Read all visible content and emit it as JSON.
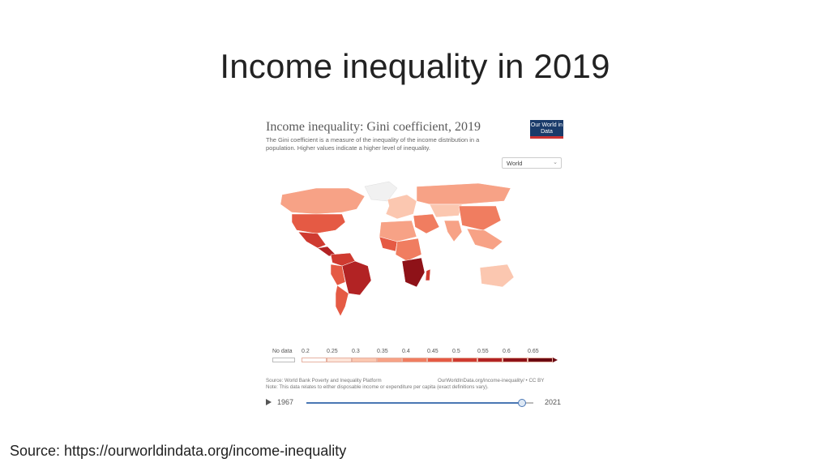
{
  "slide": {
    "title": "Income inequality in 2019",
    "source": "Source: https://ourworldindata.org/income-inequality"
  },
  "chart": {
    "title": "Income inequality: Gini coefficient, 2019",
    "subtitle": "The Gini coefficient is a measure of the inequality of the income distribution in a population. Higher values indicate a higher level of inequality.",
    "logo": "Our World in Data",
    "region_select": "World",
    "legend": {
      "no_data": "No data",
      "ticks": [
        "0.2",
        "0.25",
        "0.3",
        "0.35",
        "0.4",
        "0.45",
        "0.5",
        "0.55",
        "0.6",
        "0.65"
      ],
      "colors": [
        "#ffffff",
        "#fde4d8",
        "#fbc7b0",
        "#f7a286",
        "#f07d60",
        "#e55a44",
        "#cf3a30",
        "#b22324",
        "#8e1218",
        "#6b0a12"
      ]
    },
    "source_note": "Source: World Bank Poverty and Inequality Platform",
    "license": "OurWorldInData.org/income-inequality/ • CC BY",
    "note": "Note: This data relates to either disposable income or expenditure per capita (exact definitions vary).",
    "timeline": {
      "start": "1967",
      "end": "2021",
      "fraction": 0.95
    }
  }
}
